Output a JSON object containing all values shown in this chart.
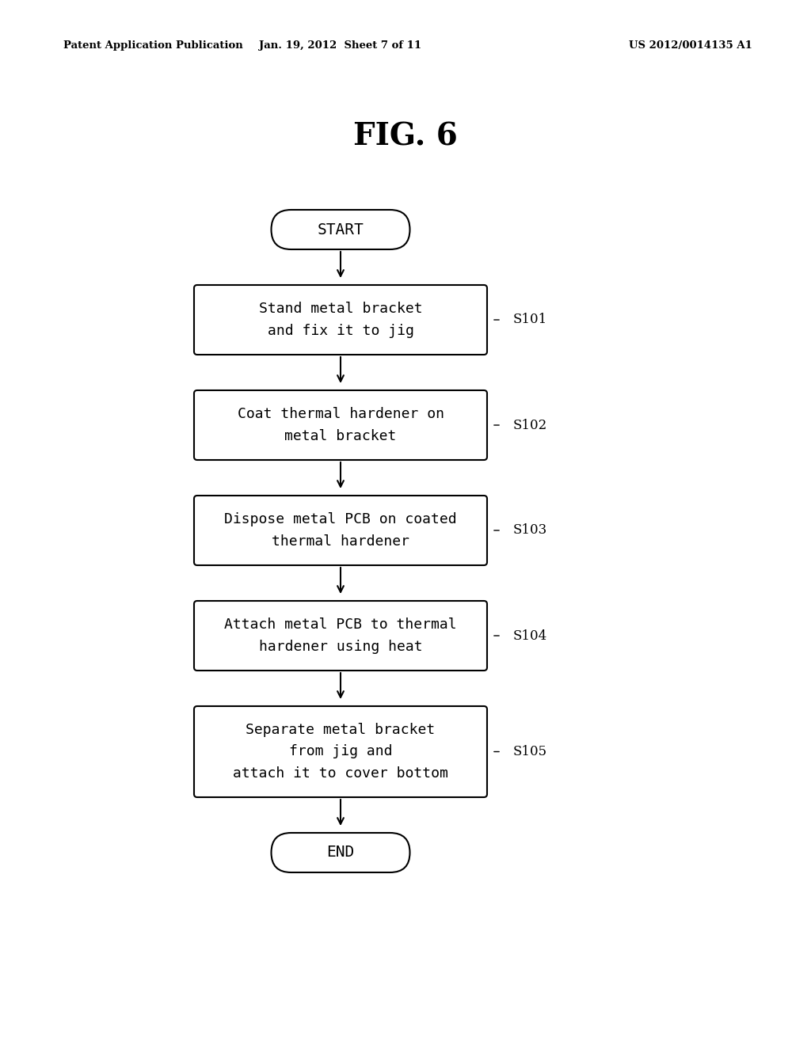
{
  "title": "FIG. 6",
  "header_left": "Patent Application Publication",
  "header_center": "Jan. 19, 2012  Sheet 7 of 11",
  "header_right": "US 2012/0014135 A1",
  "start_label": "START",
  "end_label": "END",
  "steps": [
    {
      "label": "Stand metal bracket\nand fix it to jig",
      "step_id": "S101"
    },
    {
      "label": "Coat thermal hardener on\nmetal bracket",
      "step_id": "S102"
    },
    {
      "label": "Dispose metal PCB on coated\nthermal hardener",
      "step_id": "S103"
    },
    {
      "label": "Attach metal PCB to thermal\nhardener using heat",
      "step_id": "S104"
    },
    {
      "label": "Separate metal bracket\nfrom jig and\nattach it to cover bottom",
      "step_id": "S105"
    }
  ],
  "background_color": "#ffffff",
  "text_color": "#000000",
  "font_family": "monospace"
}
